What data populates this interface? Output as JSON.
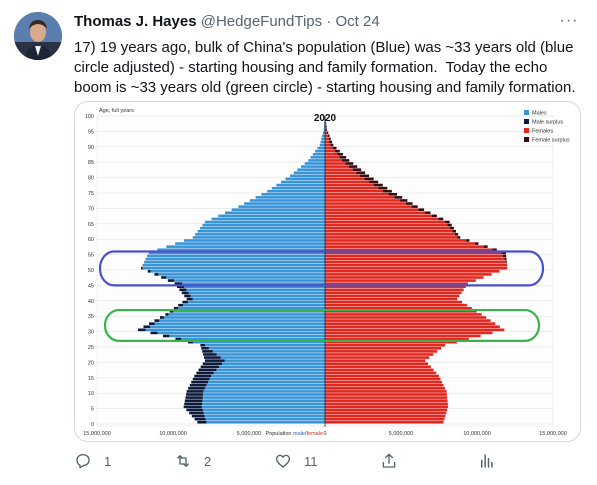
{
  "tweet": {
    "author_name": "Thomas J. Hayes",
    "handle": "@HedgeFundTips",
    "separator": "·",
    "date": "Oct 24",
    "more_glyph": "···",
    "text": "17) 19 years ago, bulk of China's population (Blue) was ~33 years old (blue circle adjusted) - starting housing and family formation.  Today the echo boom is ~33 years old (green circle) - starting housing and family formation."
  },
  "actions": {
    "reply_count": "1",
    "retweet_count": "2",
    "like_count": "11"
  },
  "chart_data": {
    "type": "bar",
    "title": "2020",
    "ylabel": "Age, full years",
    "age_ticks": [
      "100",
      "95",
      "90",
      "85",
      "80",
      "75",
      "70",
      "65",
      "60",
      "55",
      "50",
      "45",
      "40",
      "35",
      "30",
      "25",
      "20",
      "15",
      "10",
      "5",
      "0"
    ],
    "x_tick_labels": [
      "15,000,000",
      "10,000,000",
      "5,000,000",
      "0",
      "5,000,000",
      "10,000,000",
      "15,000,000"
    ],
    "x_axis_label_prefix": "Population",
    "x_axis_label_male": "male",
    "x_axis_label_slash": "/",
    "x_axis_label_female": "female",
    "legend": [
      "Males",
      "Male surplus",
      "Females",
      "Female surplus"
    ],
    "colors": {
      "males": "#3a95d8",
      "male_surplus": "#0c1a3c",
      "females": "#e1271e",
      "female_surplus": "#3a0e10",
      "blue_circle": "#4a50c8",
      "green_circle": "#3ab34a"
    },
    "age_groups": [
      "0",
      "5",
      "10",
      "15",
      "20",
      "25",
      "30",
      "35",
      "40",
      "45",
      "50",
      "55",
      "60",
      "65",
      "70",
      "75",
      "80",
      "85",
      "90",
      "95",
      "100"
    ],
    "males": [
      8.4,
      9.3,
      9.1,
      8.6,
      7.9,
      8.2,
      12.3,
      10.5,
      9.1,
      9.9,
      12.1,
      11.6,
      8.7,
      7.9,
      5.7,
      3.8,
      2.3,
      1.1,
      0.35,
      0.08,
      0.01
    ],
    "females": [
      7.8,
      8.1,
      8.0,
      7.5,
      6.6,
      7.9,
      11.8,
      10.3,
      8.7,
      9.4,
      12.0,
      11.9,
      8.9,
      8.2,
      6.1,
      4.4,
      2.9,
      1.6,
      0.55,
      0.13,
      0.01
    ],
    "highlights": [
      {
        "name": "blue circle",
        "age_range": [
          45,
          56
        ]
      },
      {
        "name": "green circle",
        "age_range": [
          27,
          37
        ]
      }
    ]
  }
}
